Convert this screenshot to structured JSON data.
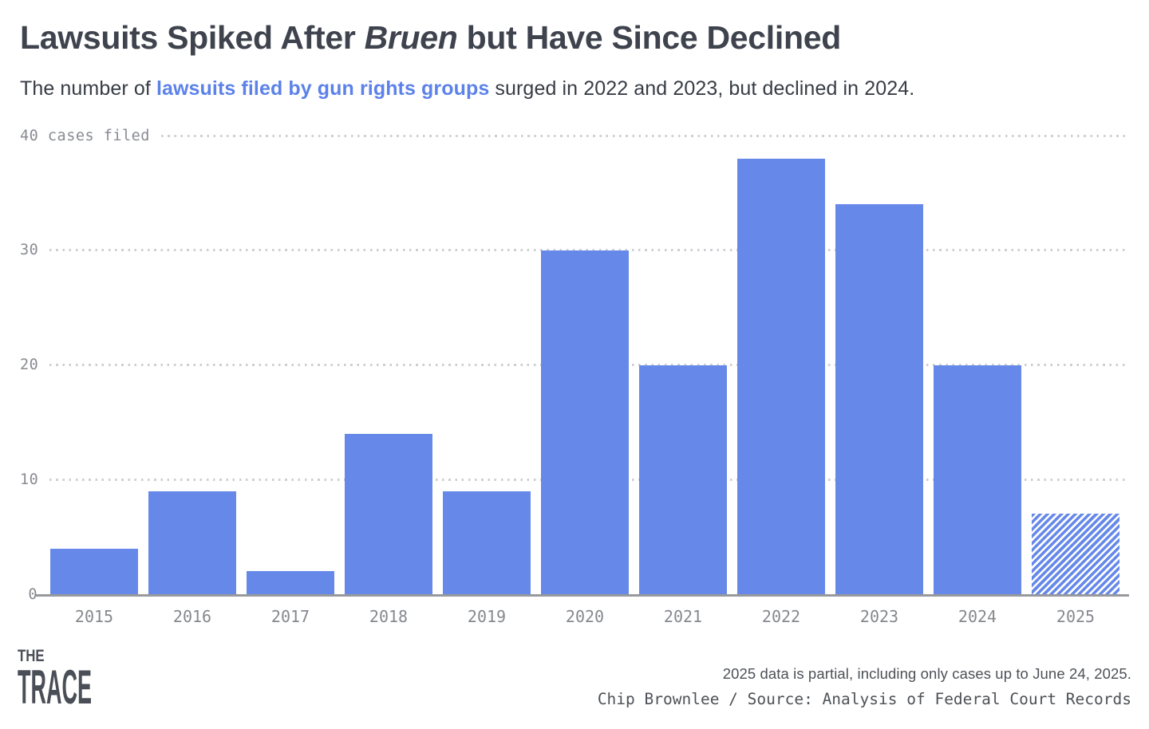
{
  "header": {
    "title_pre": "Lawsuits Spiked After ",
    "title_italic": "Bruen",
    "title_post": " but Have Since Declined",
    "subtitle_pre": "The number of ",
    "subtitle_highlight": "lawsuits filed by gun rights groups",
    "subtitle_post": " surged in 2022 and 2023, but declined in 2024."
  },
  "chart_data": {
    "type": "bar",
    "title": "Lawsuits Spiked After Bruen but Have Since Declined",
    "categories": [
      "2015",
      "2016",
      "2017",
      "2018",
      "2019",
      "2020",
      "2021",
      "2022",
      "2023",
      "2024",
      "2025"
    ],
    "values": [
      4,
      9,
      2,
      14,
      9,
      30,
      20,
      38,
      34,
      20,
      7
    ],
    "partial_categories": [
      "2025"
    ],
    "y_top_label": "40 cases filed",
    "y_ticks": [
      0,
      10,
      20,
      30,
      40
    ],
    "ylim": [
      0,
      40
    ],
    "xlabel": "",
    "ylabel": "cases filed",
    "grid": "horizontal dotted",
    "legend": "none",
    "bar_color": "#6689e9",
    "partial_bar_style": "diagonal hatch"
  },
  "colors": {
    "bar_blue": "#6689e9",
    "highlight_blue": "#5c82e9",
    "title_gray": "#3e434d",
    "axis_gray": "#97999c",
    "tick_gray": "#888b91",
    "gridline_gray": "#cdcfd3",
    "footer_gray": "#4d5157"
  },
  "footer": {
    "logo_line1": "THE",
    "logo_line2": "TRACE",
    "note_partial": "2025 data is partial, including only cases up to June 24, 2025.",
    "note_source": "Chip Brownlee / Source: Analysis of Federal Court Records"
  }
}
